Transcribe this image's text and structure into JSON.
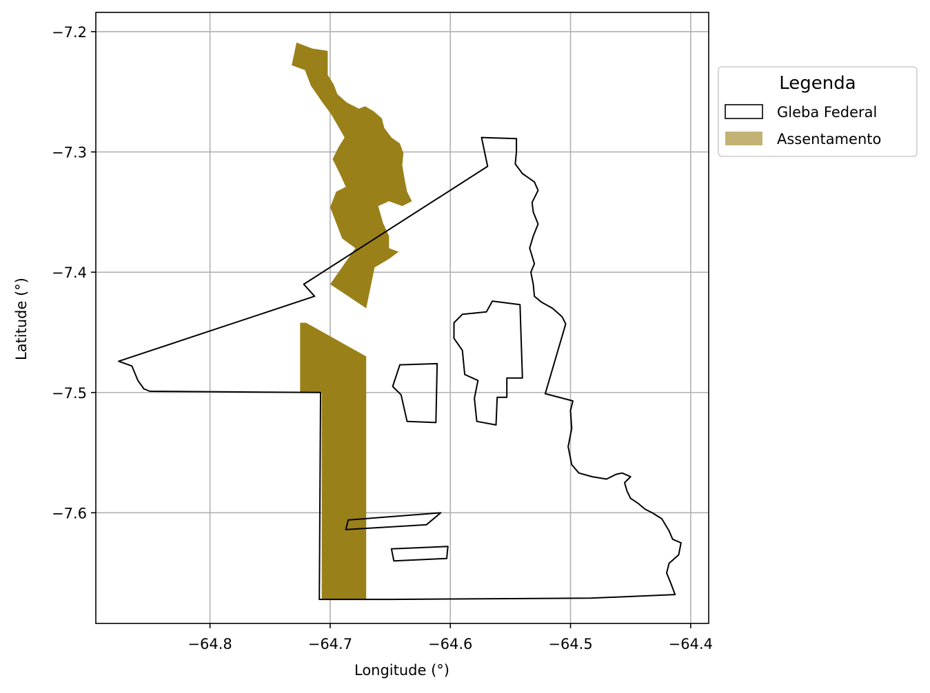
{
  "chart_data": {
    "type": "map",
    "xlabel": "Longitude (°)",
    "ylabel": "Latitude (°)",
    "xlim": [
      -64.895,
      -64.385
    ],
    "ylim": [
      -7.692,
      -7.184
    ],
    "xticks": [
      -64.8,
      -64.7,
      -64.6,
      -64.5,
      -64.4
    ],
    "xtick_labels": [
      "−64.8",
      "−64.7",
      "−64.6",
      "−64.5",
      "−64.4"
    ],
    "yticks": [
      -7.2,
      -7.3,
      -7.4,
      -7.5,
      -7.6
    ],
    "ytick_labels": [
      "−7.2",
      "−7.3",
      "−7.4",
      "−7.5",
      "−7.6"
    ],
    "grid": true,
    "legend": {
      "title": "Legenda",
      "placement": "outside-right",
      "entries": [
        {
          "label": "Gleba Federal",
          "style": "outline",
          "color": "#000000"
        },
        {
          "label": "Assentamento",
          "style": "fill",
          "color": "#9a8019"
        }
      ]
    },
    "colors": {
      "assentamento": "#9a8019",
      "gleba": "#000000",
      "grid": "#b0b0b0"
    },
    "assentamento_polygons": [
      [
        [
          -64.728,
          -7.209
        ],
        [
          -64.715,
          -7.214
        ],
        [
          -64.702,
          -7.216
        ],
        [
          -64.702,
          -7.236
        ],
        [
          -64.697,
          -7.244
        ],
        [
          -64.694,
          -7.252
        ],
        [
          -64.686,
          -7.259
        ],
        [
          -64.676,
          -7.264
        ],
        [
          -64.671,
          -7.262
        ],
        [
          -64.664,
          -7.266
        ],
        [
          -64.657,
          -7.272
        ],
        [
          -64.655,
          -7.28
        ],
        [
          -64.649,
          -7.288
        ],
        [
          -64.642,
          -7.293
        ],
        [
          -64.639,
          -7.301
        ],
        [
          -64.64,
          -7.311
        ],
        [
          -64.638,
          -7.323
        ],
        [
          -64.636,
          -7.333
        ],
        [
          -64.632,
          -7.341
        ],
        [
          -64.64,
          -7.345
        ],
        [
          -64.651,
          -7.341
        ],
        [
          -64.66,
          -7.345
        ],
        [
          -64.656,
          -7.359
        ],
        [
          -64.651,
          -7.37
        ],
        [
          -64.651,
          -7.38
        ],
        [
          -64.643,
          -7.383
        ],
        [
          -64.651,
          -7.389
        ],
        [
          -64.663,
          -7.396
        ],
        [
          -64.67,
          -7.43
        ],
        [
          -64.7,
          -7.41
        ],
        [
          -64.679,
          -7.38
        ],
        [
          -64.69,
          -7.372
        ],
        [
          -64.7,
          -7.346
        ],
        [
          -64.695,
          -7.333
        ],
        [
          -64.687,
          -7.329
        ],
        [
          -64.692,
          -7.318
        ],
        [
          -64.698,
          -7.306
        ],
        [
          -64.693,
          -7.296
        ],
        [
          -64.688,
          -7.288
        ],
        [
          -64.699,
          -7.269
        ],
        [
          -64.707,
          -7.258
        ],
        [
          -64.716,
          -7.245
        ],
        [
          -64.721,
          -7.232
        ],
        [
          -64.732,
          -7.228
        ]
      ],
      [
        [
          -64.725,
          -7.442
        ],
        [
          -64.72,
          -7.442
        ],
        [
          -64.67,
          -7.47
        ],
        [
          -64.67,
          -7.672
        ],
        [
          -64.707,
          -7.672
        ],
        [
          -64.707,
          -7.5
        ],
        [
          -64.725,
          -7.5
        ]
      ]
    ],
    "gleba_polygons": [
      [
        [
          -64.876,
          -7.474
        ],
        [
          -64.865,
          -7.478
        ],
        [
          -64.86,
          -7.49
        ],
        [
          -64.855,
          -7.497
        ],
        [
          -64.85,
          -7.499
        ],
        [
          -64.708,
          -7.5
        ],
        [
          -64.709,
          -7.672
        ],
        [
          -64.649,
          -7.672
        ],
        [
          -64.483,
          -7.671
        ],
        [
          -64.413,
          -7.668
        ],
        [
          -64.416,
          -7.66
        ],
        [
          -64.42,
          -7.65
        ],
        [
          -64.418,
          -7.642
        ],
        [
          -64.41,
          -7.635
        ],
        [
          -64.408,
          -7.625
        ],
        [
          -64.415,
          -7.622
        ],
        [
          -64.418,
          -7.615
        ],
        [
          -64.424,
          -7.605
        ],
        [
          -64.432,
          -7.6
        ],
        [
          -64.438,
          -7.597
        ],
        [
          -64.444,
          -7.592
        ],
        [
          -64.45,
          -7.588
        ],
        [
          -64.453,
          -7.582
        ],
        [
          -64.455,
          -7.575
        ],
        [
          -64.45,
          -7.57
        ],
        [
          -64.457,
          -7.567
        ],
        [
          -64.462,
          -7.568
        ],
        [
          -64.47,
          -7.572
        ],
        [
          -64.482,
          -7.57
        ],
        [
          -64.493,
          -7.567
        ],
        [
          -64.499,
          -7.56
        ],
        [
          -64.502,
          -7.545
        ],
        [
          -64.499,
          -7.53
        ],
        [
          -64.5,
          -7.515
        ],
        [
          -64.498,
          -7.507
        ],
        [
          -64.521,
          -7.501
        ],
        [
          -64.504,
          -7.443
        ],
        [
          -64.507,
          -7.437
        ],
        [
          -64.515,
          -7.43
        ],
        [
          -64.524,
          -7.425
        ],
        [
          -64.53,
          -7.42
        ],
        [
          -64.531,
          -7.41
        ],
        [
          -64.533,
          -7.4
        ],
        [
          -64.53,
          -7.393
        ],
        [
          -64.534,
          -7.38
        ],
        [
          -64.531,
          -7.37
        ],
        [
          -64.527,
          -7.36
        ],
        [
          -64.531,
          -7.35
        ],
        [
          -64.532,
          -7.342
        ],
        [
          -64.527,
          -7.332
        ],
        [
          -64.53,
          -7.325
        ],
        [
          -64.54,
          -7.318
        ],
        [
          -64.546,
          -7.31
        ],
        [
          -64.545,
          -7.3
        ],
        [
          -64.545,
          -7.289
        ],
        [
          -64.574,
          -7.288
        ],
        [
          -64.569,
          -7.312
        ],
        [
          -64.722,
          -7.41
        ],
        [
          -64.713,
          -7.42
        ],
        [
          -64.876,
          -7.474
        ]
      ],
      [
        [
          -64.642,
          -7.477
        ],
        [
          -64.611,
          -7.476
        ],
        [
          -64.612,
          -7.525
        ],
        [
          -64.636,
          -7.524
        ],
        [
          -64.641,
          -7.502
        ],
        [
          -64.648,
          -7.495
        ],
        [
          -64.642,
          -7.477
        ]
      ],
      [
        [
          -64.565,
          -7.424
        ],
        [
          -64.542,
          -7.427
        ],
        [
          -64.54,
          -7.488
        ],
        [
          -64.553,
          -7.488
        ],
        [
          -64.553,
          -7.504
        ],
        [
          -64.561,
          -7.504
        ],
        [
          -64.562,
          -7.527
        ],
        [
          -64.578,
          -7.524
        ],
        [
          -64.58,
          -7.505
        ],
        [
          -64.577,
          -7.49
        ],
        [
          -64.588,
          -7.485
        ],
        [
          -64.59,
          -7.465
        ],
        [
          -64.597,
          -7.455
        ],
        [
          -64.597,
          -7.442
        ],
        [
          -64.59,
          -7.435
        ],
        [
          -64.57,
          -7.433
        ],
        [
          -64.565,
          -7.424
        ]
      ],
      [
        [
          -64.608,
          -7.6
        ],
        [
          -64.685,
          -7.606
        ],
        [
          -64.687,
          -7.614
        ],
        [
          -64.62,
          -7.61
        ],
        [
          -64.608,
          -7.6
        ]
      ],
      [
        [
          -64.602,
          -7.628
        ],
        [
          -64.649,
          -7.63
        ],
        [
          -64.647,
          -7.64
        ],
        [
          -64.603,
          -7.638
        ],
        [
          -64.602,
          -7.628
        ]
      ]
    ]
  }
}
